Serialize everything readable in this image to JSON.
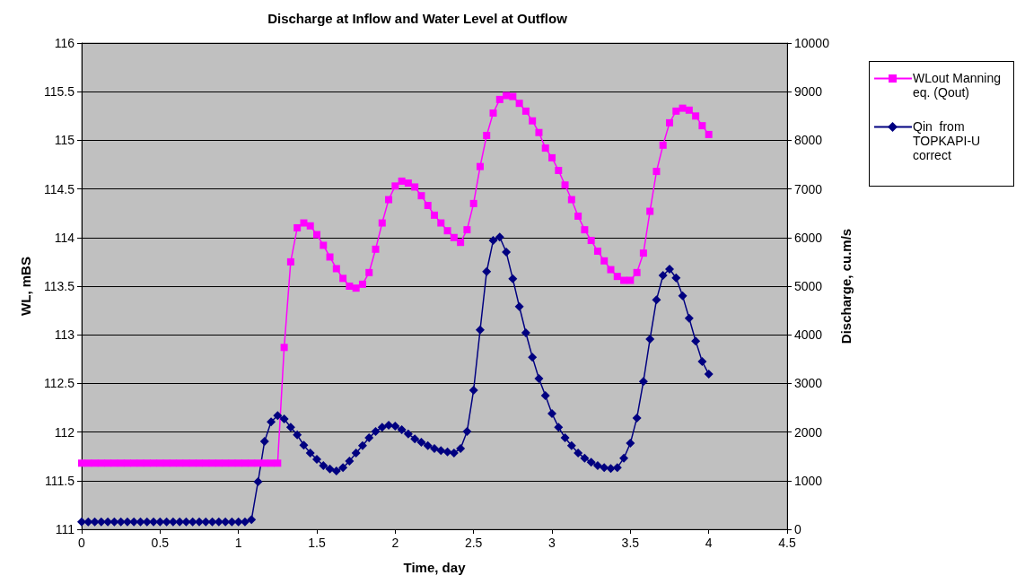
{
  "chart_data": {
    "type": "line",
    "title": "Discharge at Inflow and Water Level at Outflow",
    "xlabel": "Time, day",
    "ylabel": "WL, mBS",
    "y2label": "Discharge, cu.m/s",
    "x": [
      0,
      0.0417,
      0.0833,
      0.125,
      0.1667,
      0.2083,
      0.25,
      0.2917,
      0.3333,
      0.375,
      0.4167,
      0.4583,
      0.5,
      0.5417,
      0.5833,
      0.625,
      0.6667,
      0.7083,
      0.75,
      0.7917,
      0.8333,
      0.875,
      0.9167,
      0.9583,
      1,
      1.0417,
      1.0833,
      1.125,
      1.1667,
      1.2083,
      1.25,
      1.2917,
      1.3333,
      1.375,
      1.4167,
      1.4583,
      1.5,
      1.5417,
      1.5833,
      1.625,
      1.6667,
      1.7083,
      1.75,
      1.7917,
      1.8333,
      1.875,
      1.9167,
      1.9583,
      2,
      2.0417,
      2.0833,
      2.125,
      2.1667,
      2.2083,
      2.25,
      2.2917,
      2.3333,
      2.375,
      2.4167,
      2.4583,
      2.5,
      2.5417,
      2.5833,
      2.625,
      2.6667,
      2.7083,
      2.75,
      2.7917,
      2.8333,
      2.875,
      2.9167,
      2.9583,
      3,
      3.0417,
      3.0833,
      3.125,
      3.1667,
      3.2083,
      3.25,
      3.2917,
      3.3333,
      3.375,
      3.4167,
      3.4583,
      3.5,
      3.5417,
      3.5833,
      3.625,
      3.6667,
      3.7083,
      3.75,
      3.7917,
      3.8333,
      3.875,
      3.9167,
      3.9583,
      4
    ],
    "series": [
      {
        "name": "WLout Manning eq. (Qout)",
        "color": "#ff00ff",
        "marker": "square",
        "values": [
          111.68,
          111.68,
          111.68,
          111.68,
          111.68,
          111.68,
          111.68,
          111.68,
          111.68,
          111.68,
          111.68,
          111.68,
          111.68,
          111.68,
          111.68,
          111.68,
          111.68,
          111.68,
          111.68,
          111.68,
          111.68,
          111.68,
          111.68,
          111.68,
          111.68,
          111.68,
          111.68,
          111.68,
          111.68,
          111.68,
          111.68,
          112.87,
          113.75,
          114.1,
          114.15,
          114.12,
          114.03,
          113.92,
          113.8,
          113.68,
          113.58,
          113.5,
          113.48,
          113.52,
          113.64,
          113.88,
          114.15,
          114.39,
          114.53,
          114.58,
          114.56,
          114.52,
          114.43,
          114.33,
          114.23,
          114.15,
          114.07,
          114.0,
          113.95,
          114.08,
          114.35,
          114.73,
          115.05,
          115.28,
          115.42,
          115.46,
          115.45,
          115.38,
          115.3,
          115.2,
          115.08,
          114.92,
          114.82,
          114.69,
          114.54,
          114.39,
          114.22,
          114.08,
          113.97,
          113.86,
          113.76,
          113.67,
          113.6,
          113.56,
          113.56,
          113.64,
          113.84,
          114.27,
          114.68,
          114.95,
          115.18,
          115.3,
          115.33,
          115.31,
          115.25,
          115.15,
          115.06
        ]
      },
      {
        "name": "Qin  from TOPKAPI-U correct",
        "color": "#000080",
        "marker": "diamond",
        "axis": "y2",
        "values": [
          150,
          150,
          150,
          150,
          150,
          150,
          150,
          150,
          150,
          150,
          150,
          150,
          150,
          150,
          150,
          150,
          150,
          150,
          150,
          150,
          150,
          150,
          150,
          150,
          150,
          150,
          200,
          980,
          1810,
          2210,
          2340,
          2270,
          2100,
          1940,
          1730,
          1570,
          1440,
          1310,
          1240,
          1200,
          1270,
          1400,
          1570,
          1720,
          1880,
          2010,
          2100,
          2140,
          2120,
          2050,
          1960,
          1860,
          1790,
          1720,
          1660,
          1620,
          1590,
          1570,
          1660,
          2010,
          2860,
          4100,
          5300,
          5940,
          6010,
          5700,
          5150,
          4580,
          4040,
          3540,
          3100,
          2750,
          2380,
          2100,
          1880,
          1720,
          1570,
          1460,
          1380,
          1310,
          1270,
          1250,
          1270,
          1460,
          1770,
          2290,
          3040,
          3910,
          4720,
          5220,
          5350,
          5170,
          4800,
          4340,
          3870,
          3450,
          3190
        ]
      }
    ],
    "xlim": [
      0,
      4.5
    ],
    "xticks": [
      0,
      0.5,
      1,
      1.5,
      2,
      2.5,
      3,
      3.5,
      4,
      4.5
    ],
    "ylim": [
      111,
      116
    ],
    "yticks": [
      111,
      111.5,
      112,
      112.5,
      113,
      113.5,
      114,
      114.5,
      115,
      115.5,
      116
    ],
    "y2lim": [
      0,
      10000
    ],
    "y2ticks": [
      0,
      1000,
      2000,
      3000,
      4000,
      5000,
      6000,
      7000,
      8000,
      9000,
      10000
    ],
    "grid": "y",
    "legend": "top right"
  }
}
